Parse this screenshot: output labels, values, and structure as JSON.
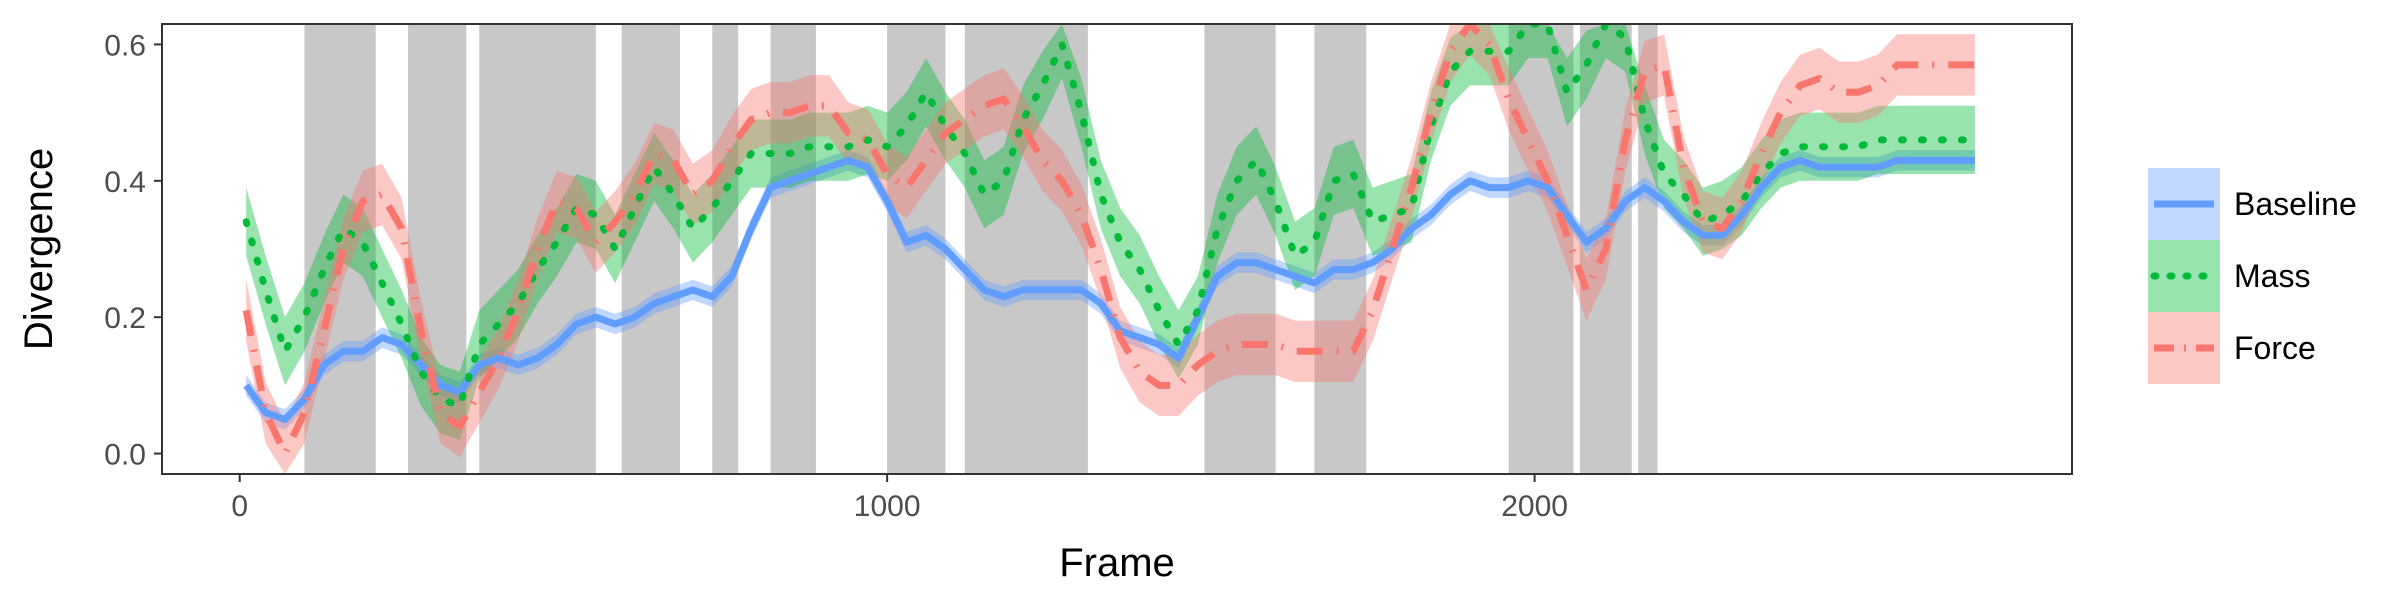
{
  "chart_data": {
    "type": "line",
    "xlabel": "Frame",
    "ylabel": "Divergence",
    "xlim": [
      -120,
      2830
    ],
    "ylim": [
      -0.03,
      0.63
    ],
    "x_ticks": [
      0,
      1000,
      2000
    ],
    "x_tick_labels": [
      "0",
      "1000",
      "2000"
    ],
    "y_ticks": [
      0.0,
      0.2,
      0.4,
      0.6
    ],
    "y_tick_labels": [
      "0.0",
      "0.2",
      "0.4",
      "0.6"
    ],
    "grid": false,
    "legend_position": "right",
    "shaded_intervals": [
      [
        100,
        210
      ],
      [
        260,
        350
      ],
      [
        370,
        550
      ],
      [
        590,
        680
      ],
      [
        730,
        770
      ],
      [
        820,
        890
      ],
      [
        1000,
        1090
      ],
      [
        1120,
        1310
      ],
      [
        1490,
        1600
      ],
      [
        1660,
        1740
      ],
      [
        1960,
        2060
      ],
      [
        2070,
        2150
      ],
      [
        2160,
        2190
      ]
    ],
    "shade_color": "#c8c8c8",
    "series": [
      {
        "name": "Baseline",
        "color": "#619CFF",
        "style": "solid",
        "x": [
          10,
          40,
          70,
          100,
          130,
          160,
          190,
          220,
          250,
          280,
          310,
          340,
          370,
          400,
          430,
          460,
          490,
          520,
          550,
          580,
          610,
          640,
          670,
          700,
          730,
          760,
          790,
          820,
          850,
          880,
          910,
          940,
          970,
          1000,
          1030,
          1060,
          1090,
          1120,
          1150,
          1180,
          1210,
          1240,
          1270,
          1300,
          1330,
          1360,
          1390,
          1420,
          1450,
          1480,
          1510,
          1540,
          1570,
          1600,
          1630,
          1660,
          1690,
          1720,
          1750,
          1780,
          1810,
          1840,
          1870,
          1900,
          1930,
          1960,
          1990,
          2020,
          2050,
          2080,
          2110,
          2140,
          2170,
          2200,
          2230,
          2260,
          2290,
          2320,
          2350,
          2380,
          2410,
          2440,
          2470,
          2500,
          2530,
          2560,
          2590,
          2620,
          2650,
          2680
        ],
        "y": [
          0.1,
          0.06,
          0.05,
          0.08,
          0.13,
          0.15,
          0.15,
          0.17,
          0.16,
          0.13,
          0.1,
          0.09,
          0.13,
          0.14,
          0.13,
          0.14,
          0.16,
          0.19,
          0.2,
          0.19,
          0.2,
          0.22,
          0.23,
          0.24,
          0.23,
          0.26,
          0.33,
          0.39,
          0.4,
          0.41,
          0.42,
          0.43,
          0.42,
          0.37,
          0.31,
          0.32,
          0.3,
          0.27,
          0.24,
          0.23,
          0.24,
          0.24,
          0.24,
          0.24,
          0.22,
          0.18,
          0.17,
          0.16,
          0.14,
          0.2,
          0.26,
          0.28,
          0.28,
          0.27,
          0.26,
          0.25,
          0.27,
          0.27,
          0.28,
          0.3,
          0.33,
          0.35,
          0.38,
          0.4,
          0.39,
          0.39,
          0.4,
          0.39,
          0.35,
          0.31,
          0.33,
          0.37,
          0.39,
          0.37,
          0.34,
          0.32,
          0.32,
          0.35,
          0.39,
          0.42,
          0.43,
          0.42,
          0.42,
          0.42,
          0.42,
          0.43,
          0.43,
          0.43,
          0.43,
          0.43
        ],
        "band": 0.015
      },
      {
        "name": "Mass",
        "color": "#00BA38",
        "style": "dotted",
        "x": [
          10,
          40,
          70,
          100,
          130,
          160,
          190,
          220,
          250,
          280,
          310,
          340,
          370,
          400,
          430,
          460,
          490,
          520,
          550,
          580,
          610,
          640,
          670,
          700,
          730,
          760,
          790,
          820,
          850,
          880,
          910,
          940,
          970,
          1000,
          1030,
          1060,
          1090,
          1120,
          1150,
          1180,
          1210,
          1240,
          1270,
          1300,
          1330,
          1360,
          1390,
          1420,
          1450,
          1480,
          1510,
          1540,
          1570,
          1600,
          1630,
          1660,
          1690,
          1720,
          1750,
          1780,
          1810,
          1840,
          1870,
          1900,
          1930,
          1960,
          1990,
          2020,
          2050,
          2080,
          2110,
          2140,
          2170,
          2200,
          2230,
          2260,
          2290,
          2320,
          2350,
          2380,
          2410,
          2440,
          2470,
          2500,
          2530,
          2560,
          2590,
          2620,
          2650,
          2680
        ],
        "y": [
          0.34,
          0.24,
          0.15,
          0.2,
          0.27,
          0.33,
          0.31,
          0.25,
          0.19,
          0.12,
          0.08,
          0.07,
          0.16,
          0.19,
          0.22,
          0.27,
          0.31,
          0.36,
          0.35,
          0.3,
          0.36,
          0.42,
          0.38,
          0.33,
          0.36,
          0.4,
          0.44,
          0.44,
          0.44,
          0.45,
          0.45,
          0.45,
          0.46,
          0.45,
          0.48,
          0.53,
          0.48,
          0.44,
          0.38,
          0.4,
          0.49,
          0.54,
          0.6,
          0.5,
          0.38,
          0.31,
          0.27,
          0.21,
          0.16,
          0.21,
          0.33,
          0.4,
          0.43,
          0.37,
          0.29,
          0.31,
          0.4,
          0.41,
          0.34,
          0.35,
          0.36,
          0.48,
          0.56,
          0.59,
          0.59,
          0.59,
          0.63,
          0.63,
          0.53,
          0.57,
          0.63,
          0.61,
          0.49,
          0.41,
          0.38,
          0.34,
          0.35,
          0.37,
          0.41,
          0.44,
          0.45,
          0.45,
          0.45,
          0.45,
          0.46,
          0.46,
          0.46,
          0.46,
          0.46,
          0.46
        ],
        "band": 0.05
      },
      {
        "name": "Force",
        "color": "#F8766D",
        "style": "dashdot",
        "x": [
          10,
          40,
          70,
          100,
          130,
          160,
          190,
          220,
          250,
          280,
          310,
          340,
          370,
          400,
          430,
          460,
          490,
          520,
          550,
          580,
          610,
          640,
          670,
          700,
          730,
          760,
          790,
          820,
          850,
          880,
          910,
          940,
          970,
          1000,
          1030,
          1060,
          1090,
          1120,
          1150,
          1180,
          1210,
          1240,
          1270,
          1300,
          1330,
          1360,
          1390,
          1420,
          1450,
          1480,
          1510,
          1540,
          1570,
          1600,
          1630,
          1660,
          1690,
          1720,
          1750,
          1780,
          1810,
          1840,
          1870,
          1900,
          1930,
          1960,
          1990,
          2020,
          2050,
          2080,
          2110,
          2140,
          2170,
          2200,
          2230,
          2260,
          2290,
          2320,
          2350,
          2380,
          2410,
          2440,
          2470,
          2500,
          2530,
          2560,
          2590,
          2620,
          2650,
          2680
        ],
        "y": [
          0.21,
          0.06,
          0.0,
          0.06,
          0.18,
          0.3,
          0.37,
          0.38,
          0.33,
          0.18,
          0.06,
          0.04,
          0.09,
          0.14,
          0.21,
          0.3,
          0.37,
          0.36,
          0.31,
          0.34,
          0.38,
          0.44,
          0.43,
          0.38,
          0.4,
          0.45,
          0.49,
          0.5,
          0.5,
          0.51,
          0.51,
          0.47,
          0.46,
          0.41,
          0.39,
          0.43,
          0.47,
          0.49,
          0.51,
          0.52,
          0.48,
          0.43,
          0.4,
          0.35,
          0.27,
          0.17,
          0.12,
          0.1,
          0.1,
          0.13,
          0.15,
          0.16,
          0.16,
          0.16,
          0.15,
          0.15,
          0.15,
          0.15,
          0.21,
          0.3,
          0.39,
          0.5,
          0.59,
          0.63,
          0.6,
          0.52,
          0.46,
          0.4,
          0.32,
          0.24,
          0.3,
          0.46,
          0.56,
          0.57,
          0.42,
          0.34,
          0.33,
          0.37,
          0.44,
          0.5,
          0.54,
          0.55,
          0.53,
          0.53,
          0.54,
          0.57,
          0.57,
          0.57,
          0.57,
          0.57
        ],
        "band": 0.045
      }
    ]
  }
}
